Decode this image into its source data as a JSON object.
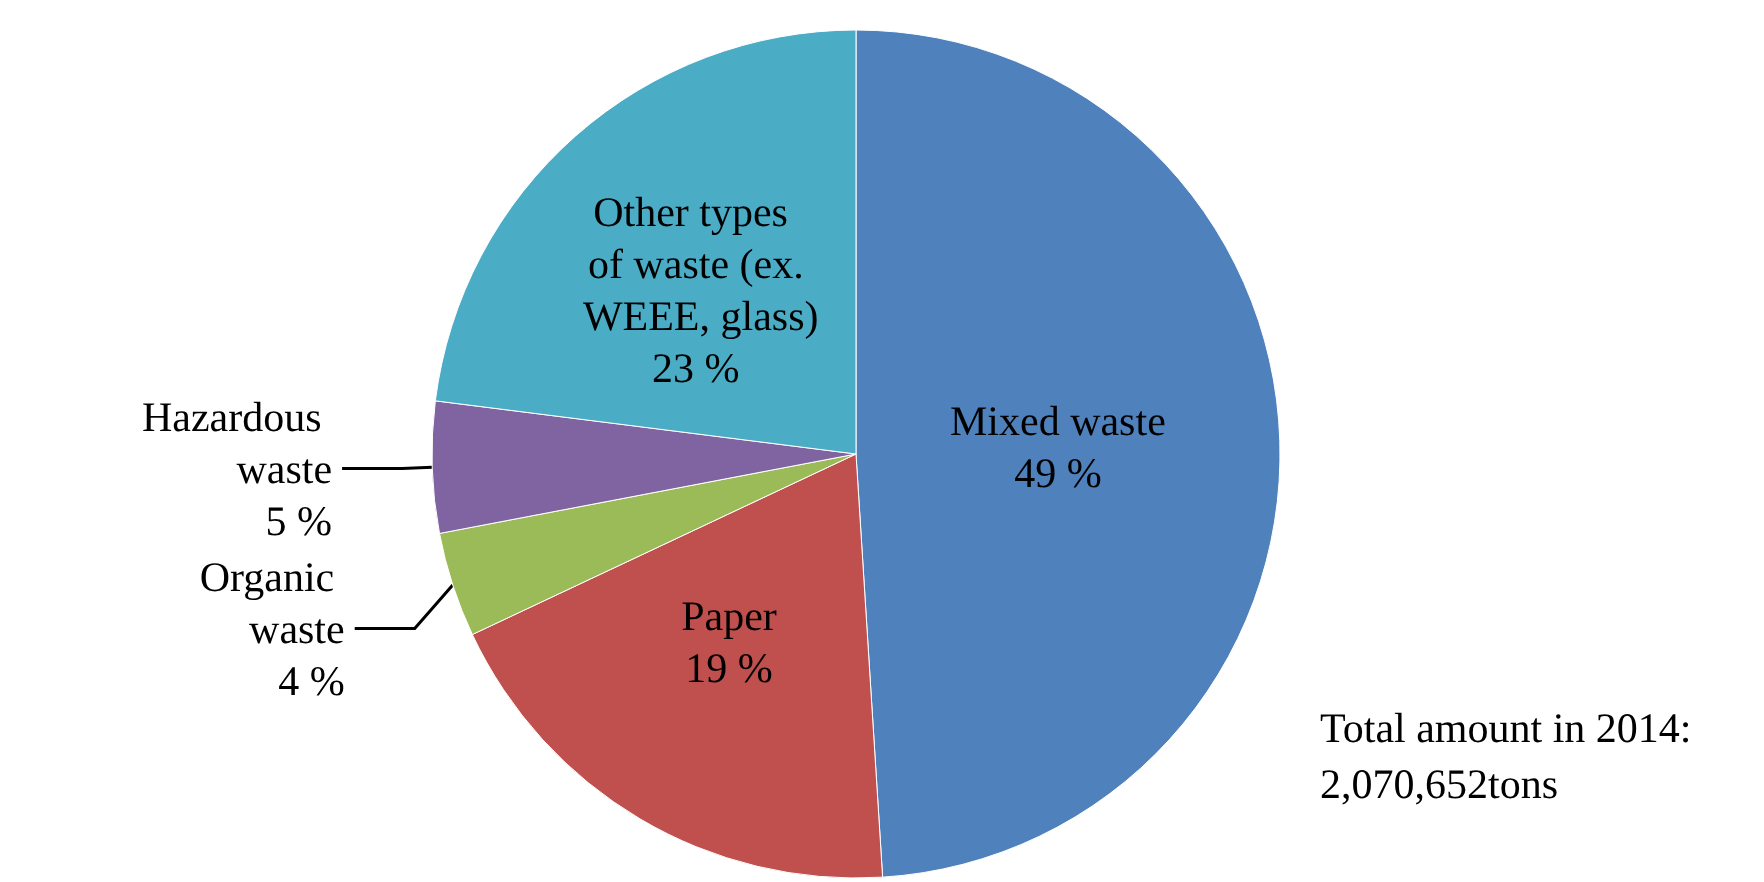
{
  "chart_data": {
    "type": "pie",
    "categories": [
      "Mixed waste",
      "Paper",
      "Organic waste",
      "Hazardous waste",
      "Other types of waste (ex. WEEE, glass)"
    ],
    "values": [
      49,
      19,
      4,
      5,
      23
    ],
    "colors": [
      "#4f81bd",
      "#c0504d",
      "#9bbb59",
      "#8064a2",
      "#4bacc6"
    ],
    "value_labels": [
      "49 %",
      "19 %",
      "4 %",
      "5 %",
      "23 %"
    ],
    "legend": false,
    "annotations": [
      "Total amount in 2014: 2,070,652tons"
    ]
  }
}
